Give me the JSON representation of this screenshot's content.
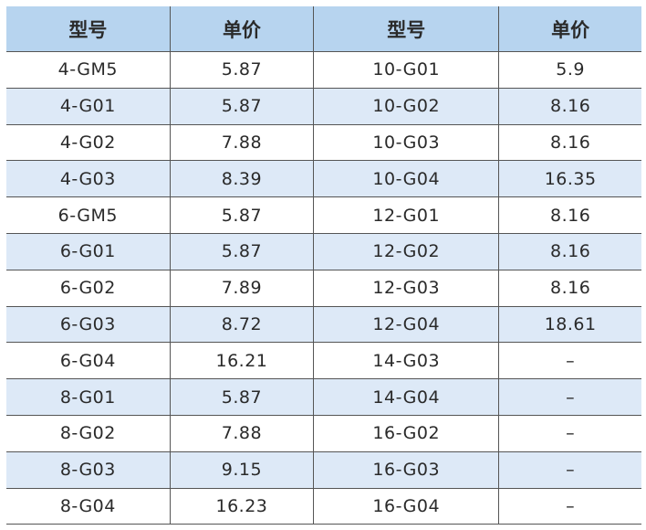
{
  "header": [
    "型号",
    "单价",
    "型号",
    "单价"
  ],
  "rows": [
    [
      "4-GM5",
      "5.87",
      "10-G01",
      "5.9"
    ],
    [
      "4-G01",
      "5.87",
      "10-G02",
      "8.16"
    ],
    [
      "4-G02",
      "7.88",
      "10-G03",
      "8.16"
    ],
    [
      "4-G03",
      "8.39",
      "10-G04",
      "16.35"
    ],
    [
      "6-GM5",
      "5.87",
      "12-G01",
      "8.16"
    ],
    [
      "6-G01",
      "5.87",
      "12-G02",
      "8.16"
    ],
    [
      "6-G02",
      "7.89",
      "12-G03",
      "8.16"
    ],
    [
      "6-G03",
      "8.72",
      "12-G04",
      "18.61"
    ],
    [
      "6-G04",
      "16.21",
      "14-G03",
      "–"
    ],
    [
      "8-G01",
      "5.87",
      "14-G04",
      "–"
    ],
    [
      "8-G02",
      "7.88",
      "16-G02",
      "–"
    ],
    [
      "8-G03",
      "9.15",
      "16-G03",
      "–"
    ],
    [
      "8-G04",
      "16.23",
      "16-G04",
      "–"
    ]
  ],
  "colors": {
    "header_bg": "#b7d4ef",
    "stripe_bg": "#dde9f7",
    "border": "#555555"
  }
}
